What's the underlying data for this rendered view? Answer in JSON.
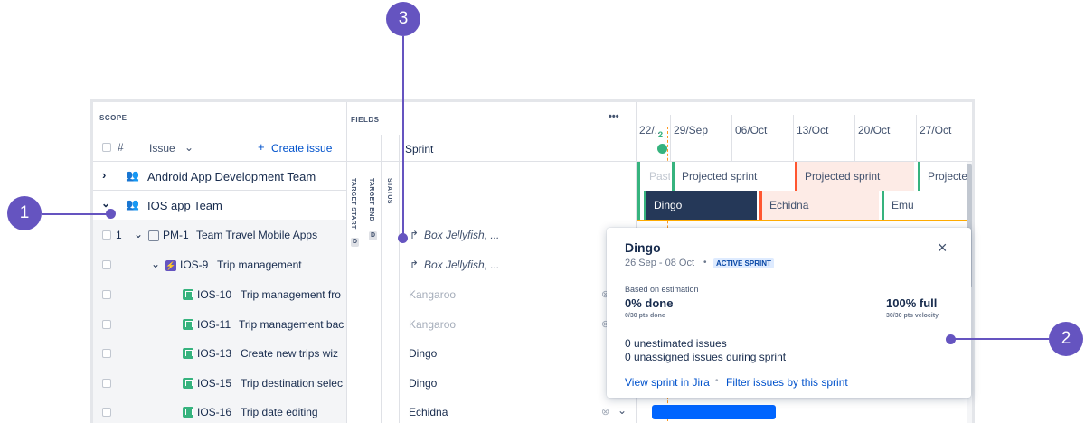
{
  "scope_label": "SCOPE",
  "fields_label": "FIELDS",
  "more_icon": "•••",
  "header": {
    "hash": "#",
    "issue_label": "Issue",
    "create_issue": "Create issue",
    "sprint_label": "Sprint",
    "target_start": "TARGET START",
    "target_end": "TARGET END",
    "status": "STATUS",
    "d_badge": "D"
  },
  "timeline": {
    "dates": [
      "22/...",
      "29/Sep",
      "06/Oct",
      "13/Oct",
      "20/Oct",
      "27/Oct"
    ],
    "today_badge": "2"
  },
  "teams": [
    {
      "name": "Android App Development Team"
    },
    {
      "name": "IOS app Team"
    }
  ],
  "android_sprints": [
    "Past",
    "Projected sprint",
    "Projected sprint",
    "Projecte"
  ],
  "ios_sprints": [
    "Dingo",
    "Echidna",
    "Emu"
  ],
  "rows": [
    {
      "num": "1",
      "key": "PM-1",
      "summary": "Team Travel Mobile Apps",
      "sprint": "Box Jellyfish, ..."
    },
    {
      "key": "IOS-9",
      "summary": "Trip management",
      "sprint": "Box Jellyfish, ..."
    },
    {
      "key": "IOS-10",
      "summary": "Trip management fro",
      "sprint": "Kangaroo"
    },
    {
      "key": "IOS-11",
      "summary": "Trip management bac",
      "sprint": "Kangaroo"
    },
    {
      "key": "IOS-13",
      "summary": "Create new trips wiz",
      "sprint": "Dingo"
    },
    {
      "key": "IOS-15",
      "summary": "Trip destination selec",
      "sprint": "Dingo"
    },
    {
      "key": "IOS-16",
      "summary": "Trip date editing",
      "sprint": "Echidna"
    }
  ],
  "popup": {
    "title": "Dingo",
    "dates": "26 Sep - 08 Oct",
    "badge": "ACTIVE SPRINT",
    "based_on": "Based on estimation",
    "done_pct": "0% done",
    "done_sub": "0/30 pts done",
    "full_pct": "100% full",
    "full_sub": "30/30 pts velocity",
    "unestimated": "0 unestimated issues",
    "unassigned": "0 unassigned issues during sprint",
    "link_jira": "View sprint in Jira",
    "link_filter": "Filter issues by this sprint",
    "separator": "•",
    "close": "×"
  },
  "callouts": [
    "1",
    "2",
    "3"
  ],
  "colors": {
    "accent": "#6554c0",
    "link": "#0052cc",
    "active_sprint": "#253858",
    "future_sprint": "#fdebe6",
    "story": "#36b37e"
  }
}
